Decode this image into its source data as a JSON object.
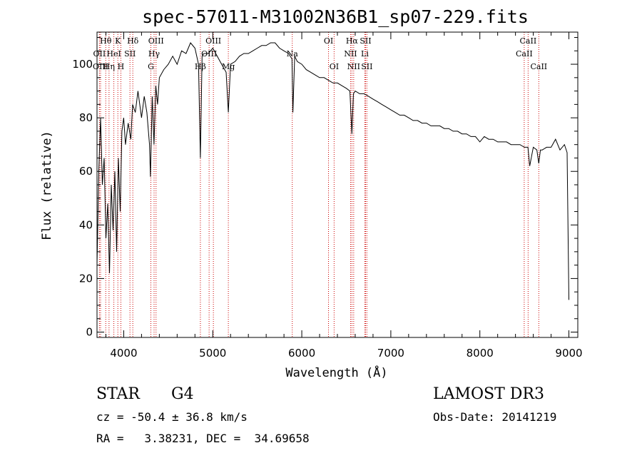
{
  "chart_data": {
    "type": "line",
    "title": "spec-57011-M31002N36B1_sp07-229.fits",
    "xlabel": "Wavelength (Å)",
    "ylabel": "Flux (relative)",
    "xlim": [
      3700,
      9100
    ],
    "ylim": [
      -2,
      112
    ],
    "xticks": [
      4000,
      5000,
      6000,
      7000,
      8000,
      9000
    ],
    "yticks": [
      0,
      20,
      40,
      60,
      80,
      100
    ],
    "series": [
      {
        "name": "flux",
        "x": [
          3700,
          3720,
          3740,
          3760,
          3780,
          3800,
          3820,
          3840,
          3860,
          3880,
          3900,
          3920,
          3940,
          3960,
          3980,
          4000,
          4020,
          4050,
          4080,
          4100,
          4130,
          4160,
          4200,
          4230,
          4260,
          4290,
          4300,
          4320,
          4340,
          4360,
          4380,
          4400,
          4450,
          4500,
          4550,
          4600,
          4650,
          4700,
          4750,
          4800,
          4840,
          4861,
          4880,
          4900,
          4950,
          5000,
          5050,
          5100,
          5150,
          5175,
          5200,
          5250,
          5300,
          5350,
          5400,
          5450,
          5500,
          5550,
          5600,
          5650,
          5700,
          5750,
          5800,
          5850,
          5890,
          5900,
          5920,
          5950,
          6000,
          6050,
          6100,
          6150,
          6200,
          6250,
          6300,
          6350,
          6400,
          6450,
          6500,
          6540,
          6563,
          6580,
          6600,
          6650,
          6700,
          6750,
          6800,
          6850,
          6900,
          6950,
          7000,
          7050,
          7100,
          7150,
          7200,
          7250,
          7300,
          7350,
          7400,
          7450,
          7500,
          7550,
          7600,
          7650,
          7700,
          7750,
          7800,
          7850,
          7900,
          7950,
          8000,
          8050,
          8100,
          8150,
          8200,
          8250,
          8300,
          8350,
          8400,
          8450,
          8500,
          8540,
          8560,
          8600,
          8640,
          8662,
          8680,
          8700,
          8750,
          8800,
          8850,
          8900,
          8950,
          8980,
          9000
        ],
        "values": [
          25,
          60,
          80,
          55,
          65,
          35,
          48,
          22,
          55,
          38,
          60,
          30,
          65,
          45,
          75,
          80,
          70,
          78,
          72,
          85,
          82,
          90,
          80,
          88,
          82,
          70,
          58,
          88,
          70,
          92,
          85,
          95,
          98,
          100,
          103,
          100,
          105,
          104,
          108,
          106,
          100,
          65,
          103,
          104,
          104,
          106,
          103,
          100,
          97,
          82,
          100,
          101,
          103,
          104,
          104,
          105,
          106,
          107,
          107,
          108,
          108,
          106,
          105,
          104,
          102,
          82,
          103,
          101,
          100,
          98,
          97,
          96,
          95,
          95,
          94,
          93,
          93,
          92,
          91,
          90,
          74,
          89,
          90,
          89,
          89,
          88,
          87,
          86,
          85,
          84,
          83,
          82,
          81,
          81,
          80,
          79,
          79,
          78,
          78,
          77,
          77,
          77,
          76,
          76,
          75,
          75,
          74,
          74,
          73,
          73,
          71,
          73,
          72,
          72,
          71,
          71,
          71,
          70,
          70,
          70,
          69,
          69,
          62,
          69,
          68,
          63,
          68,
          68,
          69,
          69,
          72,
          68,
          70,
          67,
          12
        ]
      }
    ],
    "lines": [
      {
        "label": "Hθ",
        "x": 3798,
        "row": 0
      },
      {
        "label": "OII",
        "x": 3727,
        "row": 1
      },
      {
        "label": "HeI",
        "x": 3889,
        "row": 1
      },
      {
        "label": "OIII",
        "x": 3740,
        "row": 2
      },
      {
        "label": "Hη",
        "x": 3835,
        "row": 2
      },
      {
        "label": "K",
        "x": 3934,
        "row": 0
      },
      {
        "label": "H",
        "x": 3968,
        "row": 2
      },
      {
        "label": "SII",
        "x": 4070,
        "row": 1
      },
      {
        "label": "Hδ",
        "x": 4102,
        "row": 0
      },
      {
        "label": "OIII",
        "x": 4363,
        "row": 0
      },
      {
        "label": "Hγ",
        "x": 4341,
        "row": 1
      },
      {
        "label": "G",
        "x": 4305,
        "row": 2
      },
      {
        "label": "Hβ",
        "x": 4861,
        "row": 2
      },
      {
        "label": "OIII",
        "x": 5007,
        "row": 0
      },
      {
        "label": "OIII",
        "x": 4959,
        "row": 1
      },
      {
        "label": "Mg",
        "x": 5175,
        "row": 2
      },
      {
        "label": "Na",
        "x": 5893,
        "row": 1
      },
      {
        "label": "OI",
        "x": 6300,
        "row": 0
      },
      {
        "label": "OI",
        "x": 6363,
        "row": 2
      },
      {
        "label": "Hα",
        "x": 6563,
        "row": 0
      },
      {
        "label": "NII",
        "x": 6548,
        "row": 1
      },
      {
        "label": "NII",
        "x": 6583,
        "row": 2
      },
      {
        "label": "SII",
        "x": 6716,
        "row": 0
      },
      {
        "label": "SII",
        "x": 6731,
        "row": 2
      },
      {
        "label": "Li",
        "x": 6708,
        "row": 1
      },
      {
        "label": "CaII",
        "x": 8542,
        "row": 0
      },
      {
        "label": "CaII",
        "x": 8498,
        "row": 1
      },
      {
        "label": "CaII",
        "x": 8662,
        "row": 2
      }
    ]
  },
  "info": {
    "class_label": "STAR",
    "subclass": "G4",
    "survey": "LAMOST DR3",
    "cz": "cz = -50.4 ± 36.8 km/s",
    "obs_date": "Obs-Date: 20141219",
    "radec": "RA =   3.38231, DEC =  34.69658"
  },
  "colors": {
    "line_marker": "#cc0000",
    "spectrum": "#000000"
  }
}
